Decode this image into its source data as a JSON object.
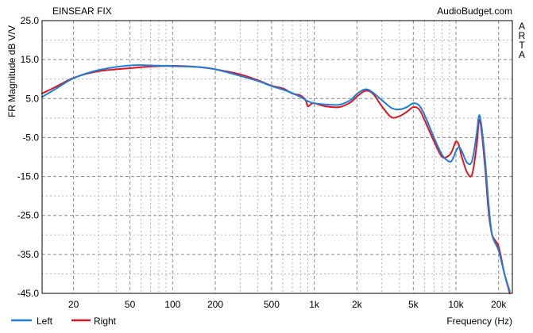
{
  "chart_data": {
    "type": "line",
    "title": "EINSEAR FIX",
    "watermark": "AudioBudget.com",
    "side_label": "ARTA",
    "xlabel": "Frequency (Hz)",
    "ylabel": "FR Magnitude dB V/V",
    "x_scale": "log",
    "xlim": [
      12,
      25000
    ],
    "ylim": [
      -45,
      25
    ],
    "grid": true,
    "legend_position": "bottom-left",
    "y_ticks": [
      25.0,
      15.0,
      5.0,
      -5.0,
      -15.0,
      -25.0,
      -35.0,
      -45.0
    ],
    "y_tick_labels": [
      "25.0",
      "15.0",
      "5.0",
      "-5.0",
      "-15.0",
      "-25.0",
      "-35.0",
      "-45.0"
    ],
    "x_ticks": [
      20,
      50,
      100,
      200,
      500,
      1000,
      2000,
      5000,
      10000,
      20000
    ],
    "x_tick_labels": [
      "20",
      "50",
      "100",
      "200",
      "500",
      "1k",
      "2k",
      "5k",
      "10k",
      "20k"
    ],
    "series": [
      {
        "name": "Left",
        "color": "#1a7ee0",
        "points": [
          [
            12,
            5.4
          ],
          [
            15,
            7.5
          ],
          [
            20,
            10.2
          ],
          [
            30,
            12.3
          ],
          [
            50,
            13.5
          ],
          [
            70,
            13.5
          ],
          [
            100,
            13.3
          ],
          [
            150,
            13.1
          ],
          [
            200,
            12.5
          ],
          [
            300,
            10.8
          ],
          [
            400,
            9.5
          ],
          [
            500,
            8.2
          ],
          [
            600,
            7.3
          ],
          [
            700,
            6.4
          ],
          [
            800,
            5.4
          ],
          [
            900,
            4.3
          ],
          [
            1000,
            3.8
          ],
          [
            1200,
            3.5
          ],
          [
            1500,
            3.4
          ],
          [
            1800,
            4.6
          ],
          [
            2000,
            6.2
          ],
          [
            2300,
            7.4
          ],
          [
            2600,
            6.5
          ],
          [
            3000,
            4.6
          ],
          [
            3500,
            2.6
          ],
          [
            4000,
            2.2
          ],
          [
            4500,
            2.8
          ],
          [
            5000,
            3.8
          ],
          [
            5500,
            3.2
          ],
          [
            6000,
            0.8
          ],
          [
            7000,
            -5.0
          ],
          [
            8000,
            -9.5
          ],
          [
            9000,
            -11.2
          ],
          [
            9500,
            -10.5
          ],
          [
            10000,
            -8.5
          ],
          [
            10500,
            -7.5
          ],
          [
            11000,
            -8.5
          ],
          [
            12000,
            -11.5
          ],
          [
            13000,
            -11.0
          ],
          [
            14000,
            -4.0
          ],
          [
            14500,
            0.5
          ],
          [
            15000,
            -1.0
          ],
          [
            16000,
            -10.0
          ],
          [
            17000,
            -22.0
          ],
          [
            18000,
            -30.0
          ],
          [
            20000,
            -34.0
          ],
          [
            22000,
            -40.0
          ],
          [
            24000,
            -44.5
          ]
        ]
      },
      {
        "name": "Right",
        "color": "#e0141e",
        "points": [
          [
            12,
            6.3
          ],
          [
            15,
            8.0
          ],
          [
            20,
            10.3
          ],
          [
            30,
            12.0
          ],
          [
            50,
            12.8
          ],
          [
            70,
            13.2
          ],
          [
            100,
            13.4
          ],
          [
            150,
            13.1
          ],
          [
            200,
            12.5
          ],
          [
            300,
            11.2
          ],
          [
            400,
            9.7
          ],
          [
            500,
            8.3
          ],
          [
            600,
            7.6
          ],
          [
            700,
            6.3
          ],
          [
            800,
            5.8
          ],
          [
            870,
            4.5
          ],
          [
            900,
            3.0
          ],
          [
            950,
            3.6
          ],
          [
            1000,
            3.8
          ],
          [
            1200,
            3.0
          ],
          [
            1500,
            2.8
          ],
          [
            1800,
            4.0
          ],
          [
            2000,
            5.5
          ],
          [
            2300,
            7.0
          ],
          [
            2600,
            6.2
          ],
          [
            3000,
            3.0
          ],
          [
            3500,
            0.2
          ],
          [
            4000,
            0.5
          ],
          [
            4500,
            1.6
          ],
          [
            5000,
            2.8
          ],
          [
            5500,
            2.2
          ],
          [
            6000,
            -0.5
          ],
          [
            7000,
            -6.0
          ],
          [
            8000,
            -10.0
          ],
          [
            9000,
            -9.5
          ],
          [
            9500,
            -8.0
          ],
          [
            10000,
            -6.0
          ],
          [
            10500,
            -7.0
          ],
          [
            11000,
            -10.0
          ],
          [
            12000,
            -14.0
          ],
          [
            13000,
            -14.5
          ],
          [
            14000,
            -7.0
          ],
          [
            14500,
            -1.0
          ],
          [
            15000,
            -2.0
          ],
          [
            16000,
            -12.0
          ],
          [
            17000,
            -24.0
          ],
          [
            18000,
            -30.0
          ],
          [
            20000,
            -33.0
          ],
          [
            22000,
            -40.0
          ],
          [
            24000,
            -45.0
          ]
        ]
      }
    ]
  }
}
